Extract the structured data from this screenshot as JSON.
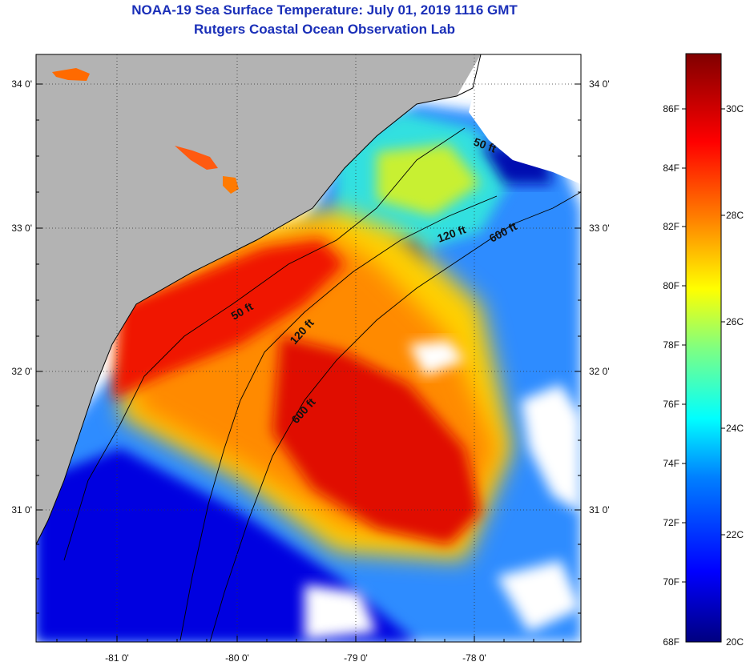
{
  "title_line1": "NOAA-19 Sea Surface Temperature:  July 01, 2019 1116 GMT",
  "title_line2": "Rutgers Coastal Ocean Observation Lab",
  "map": {
    "lat_labels": [
      "34 0'",
      "33 0'",
      "32 0'",
      "31 0'"
    ],
    "lon_labels": [
      "-81 0'",
      "-80 0'",
      "-79 0'",
      "-78 0'"
    ],
    "contour_labels": [
      "50 ft",
      "120 ft",
      "600 ft",
      "50 ft",
      "120 ft",
      "600 ft"
    ]
  },
  "colorbar": {
    "fahrenheit_labels": [
      "86F",
      "84F",
      "82F",
      "80F",
      "78F",
      "76F",
      "74F",
      "72F",
      "70F",
      "68F"
    ],
    "celsius_labels": [
      "30C",
      "28C",
      "26C",
      "24C",
      "22C",
      "20C"
    ]
  },
  "colors": {
    "title": "#1a2fb8",
    "land": "#b3b3b3",
    "no_data": "#ffffff",
    "scale": [
      "#000080",
      "#0000ff",
      "#0080ff",
      "#00ffff",
      "#80ff80",
      "#ffff00",
      "#ff8000",
      "#ff0000",
      "#800000"
    ]
  }
}
